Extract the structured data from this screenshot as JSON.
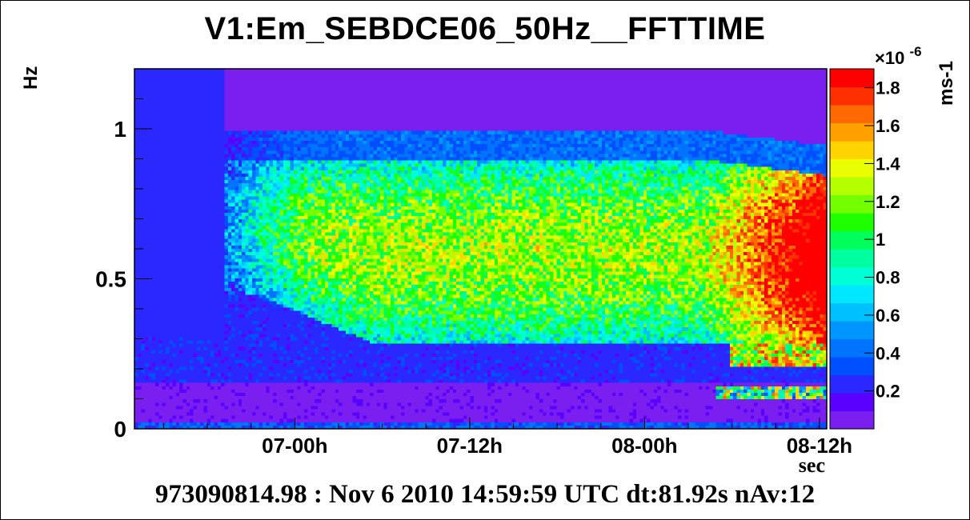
{
  "chart_data": {
    "type": "heatmap",
    "title": "V1:Em_SEBDCE06_50Hz__FFTTIME",
    "ylabel": "Hz",
    "xlabel": "sec",
    "footer": "973090814.98 : Nov  6 2010 14:59:59 UTC dt:81.92s nAv:12",
    "y_ticks": [
      {
        "value": 0,
        "label": "0"
      },
      {
        "value": 0.5,
        "label": "0.5"
      },
      {
        "value": 1,
        "label": "1"
      }
    ],
    "ylim": [
      0,
      1.2
    ],
    "x_ticks": [
      {
        "value": 0,
        "label": "07-00h"
      },
      {
        "value": 12,
        "label": "07-12h"
      },
      {
        "value": 24,
        "label": "08-00h"
      },
      {
        "value": 36,
        "label": "08-12h"
      }
    ],
    "xlim": [
      -11,
      36.5
    ],
    "colorbar": {
      "label": "ms-1",
      "exponent_base": "×10",
      "exponent": "-6",
      "range": [
        0,
        1.9
      ],
      "ticks": [
        {
          "value": 0.2,
          "label": "0.2"
        },
        {
          "value": 0.4,
          "label": "0.4"
        },
        {
          "value": 0.6,
          "label": "0.6"
        },
        {
          "value": 0.8,
          "label": "0.8"
        },
        {
          "value": 1.0,
          "label": "1"
        },
        {
          "value": 1.2,
          "label": "1.2"
        },
        {
          "value": 1.4,
          "label": "1.4"
        },
        {
          "value": 1.6,
          "label": "1.6"
        },
        {
          "value": 1.8,
          "label": "1.8"
        }
      ],
      "palette": [
        "#7a1ff0",
        "#5a00ff",
        "#2b28ff",
        "#0050ff",
        "#0074ff",
        "#0096ff",
        "#00c0ff",
        "#00e8ff",
        "#00ffd4",
        "#00ff9e",
        "#00ff5a",
        "#1eff00",
        "#74ff00",
        "#b4ff00",
        "#eaff00",
        "#ffd400",
        "#ffa000",
        "#ff6a00",
        "#ff3000",
        "#ff0000"
      ]
    },
    "series_description_values": {
      "band_low_hz": 0.3,
      "band_high_hz": 0.9,
      "peak_level": 1.9,
      "background_level": 0.05
    }
  }
}
